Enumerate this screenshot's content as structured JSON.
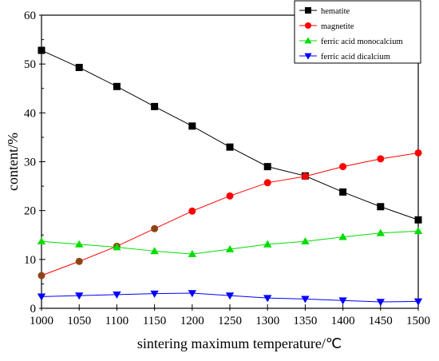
{
  "chart_data": {
    "type": "line",
    "title": "",
    "xlabel": "sintering maximum temperature/℃",
    "ylabel": "content/%",
    "xlim": [
      1000,
      1500
    ],
    "ylim": [
      0,
      60
    ],
    "x": [
      1000,
      1050,
      1100,
      1150,
      1200,
      1250,
      1300,
      1350,
      1400,
      1450,
      1500
    ],
    "x_ticks": [
      "1000",
      "1050",
      "1100",
      "1150",
      "1200",
      "1250",
      "1300",
      "1350",
      "1400",
      "1450",
      "1500"
    ],
    "y_ticks": [
      "0",
      "10",
      "20",
      "30",
      "40",
      "50",
      "60"
    ],
    "grid": false,
    "legend_position": "top-right",
    "series": [
      {
        "name": "hematite",
        "color": "#000000",
        "marker": "square",
        "values": [
          52.8,
          49.3,
          45.4,
          41.3,
          37.3,
          33.0,
          29.0,
          27.1,
          23.8,
          20.8,
          18.1
        ]
      },
      {
        "name": "magnetite",
        "color": "#ff0000",
        "marker": "circle",
        "values": [
          6.7,
          9.6,
          12.7,
          16.3,
          19.9,
          23.0,
          25.7,
          27.0,
          29.0,
          30.6,
          31.8
        ]
      },
      {
        "name": "ferric acid monocalcium",
        "color": "#00dd00",
        "marker": "triangle-up",
        "values": [
          13.7,
          13.1,
          12.5,
          11.7,
          11.1,
          12.1,
          13.1,
          13.7,
          14.6,
          15.4,
          15.8
        ]
      },
      {
        "name": "ferric acid dicalcium",
        "color": "#0000ff",
        "marker": "triangle-down",
        "values": [
          2.4,
          2.6,
          2.8,
          3.0,
          3.1,
          2.6,
          2.1,
          1.9,
          1.6,
          1.3,
          1.4
        ]
      }
    ]
  }
}
